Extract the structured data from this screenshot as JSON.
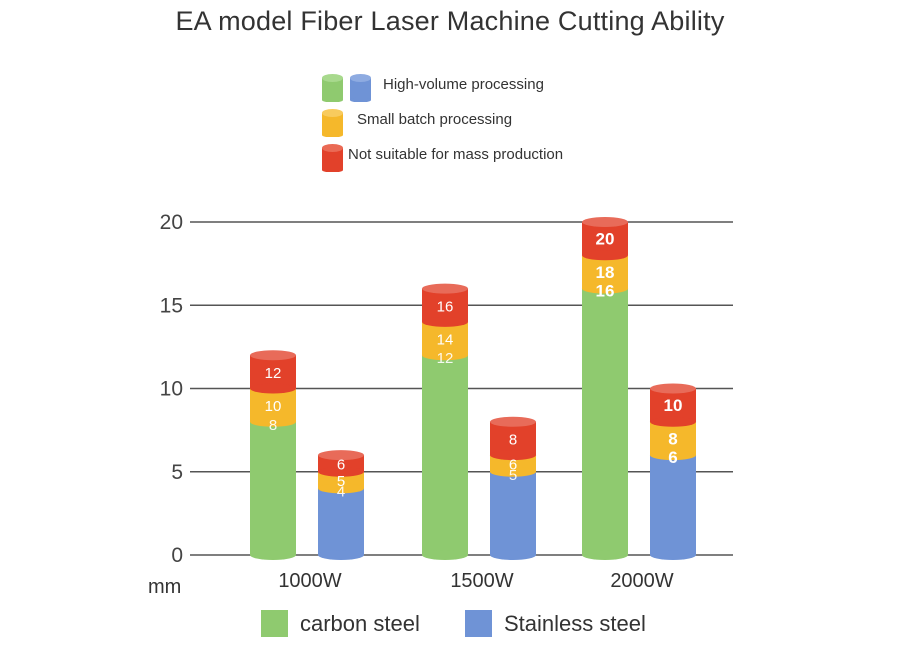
{
  "colors": {
    "carbon_green": "#8fca6f",
    "stainless_blue": "#6f93d6",
    "small_batch_yellow": "#f5b82b",
    "not_suitable_red": "#e2412a",
    "grid": "#555555"
  },
  "legend_top": [
    {
      "label": "High-volume processing",
      "swatches": [
        "carbon_green",
        "stainless_blue"
      ]
    },
    {
      "label": "Small batch processing",
      "swatches": [
        "small_batch_yellow"
      ]
    },
    {
      "label": "Not suitable for mass production",
      "swatches": [
        "not_suitable_red"
      ]
    }
  ],
  "legend_bottom": [
    {
      "label": "carbon steel",
      "color": "carbon_green"
    },
    {
      "label": "Stainless steel",
      "color": "stainless_blue"
    }
  ],
  "chart_data": {
    "type": "bar",
    "title": "EA model Fiber Laser Machine Cutting Ability",
    "xlabel": "",
    "ylabel": "mm",
    "ylim": [
      0,
      20
    ],
    "yticks": [
      0,
      5,
      10,
      15,
      20
    ],
    "grid": true,
    "categories": [
      "1000W",
      "1500W",
      "2000W"
    ],
    "series": [
      {
        "name": "carbon steel",
        "stack_thresholds": [
          [
            8,
            10,
            12
          ],
          [
            12,
            14,
            16
          ],
          [
            16,
            18,
            20
          ]
        ]
      },
      {
        "name": "Stainless steel",
        "stack_thresholds": [
          [
            4,
            5,
            6
          ],
          [
            5,
            6,
            8
          ],
          [
            6,
            8,
            10
          ]
        ]
      }
    ],
    "stack_levels": [
      "High-volume processing",
      "Small batch processing",
      "Not suitable for mass production"
    ]
  }
}
